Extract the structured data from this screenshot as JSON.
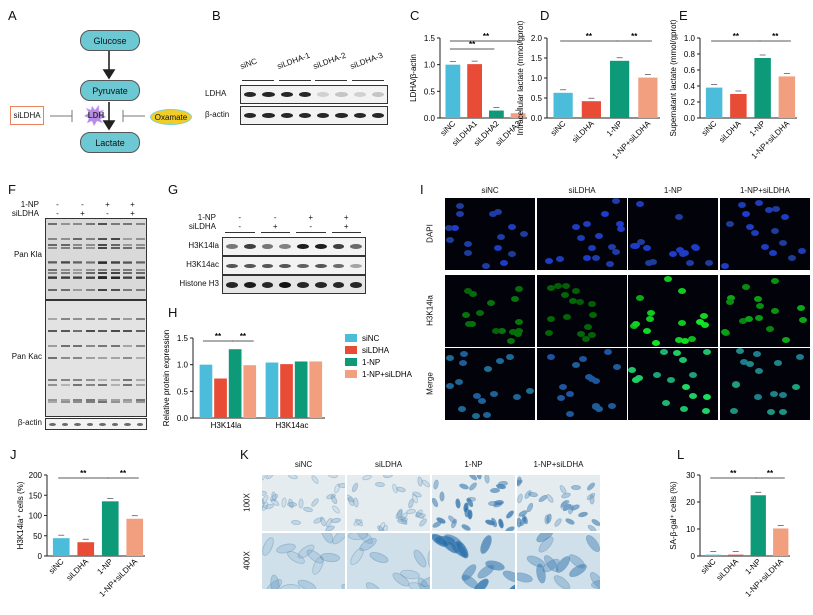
{
  "panel_letters": [
    "A",
    "B",
    "C",
    "D",
    "E",
    "F",
    "G",
    "H",
    "I",
    "J",
    "K",
    "L"
  ],
  "panel_a": {
    "nodes": [
      "Glucose",
      "Pyruvate",
      "Lactate"
    ],
    "inhibitor_left": "siLDHA",
    "enzyme": "LDH",
    "inhibitor_right": "Oxamate"
  },
  "panel_b": {
    "lanes": [
      "siNC",
      "siLDHA-1",
      "siLDHA-2",
      "siLDHA-3"
    ],
    "rows": [
      "LDHA",
      "β-actin"
    ]
  },
  "panel_f": {
    "treatments": [
      {
        "label": "1-NP",
        "values": [
          "-",
          "-",
          "+",
          "+"
        ]
      },
      {
        "label": "siLDHA",
        "values": [
          "-",
          "+",
          "-",
          "+"
        ]
      }
    ],
    "rows": [
      "Pan Kla",
      "Pan Kac",
      "β-actin"
    ]
  },
  "panel_g": {
    "treatments": [
      {
        "label": "1-NP",
        "values": [
          "-",
          "-",
          "+",
          "+"
        ]
      },
      {
        "label": "siLDHA",
        "values": [
          "-",
          "+",
          "-",
          "+"
        ]
      }
    ],
    "rows": [
      "H3K14la",
      "H3K14ac",
      "Histone H3"
    ]
  },
  "panel_i": {
    "columns": [
      "siNC",
      "siLDHA",
      "1-NP",
      "1-NP+siLDHA"
    ],
    "rows": [
      "DAPI",
      "H3K14la",
      "Merge"
    ]
  },
  "panel_k": {
    "columns": [
      "siNC",
      "siLDHA",
      "1-NP",
      "1-NP+siLDHA"
    ],
    "rows": [
      "100X",
      "400X"
    ]
  },
  "colors": {
    "siNC": "#4bbcd9",
    "siLDHA": "#e84b36",
    "1-NP": "#0d9a78",
    "1-NP+siLDHA": "#f29f80"
  },
  "chart_data": [
    {
      "panel": "C",
      "type": "bar",
      "categories": [
        "siNC",
        "siLDHA1",
        "siLDHA2",
        "siLDHA3"
      ],
      "values": [
        1.0,
        1.01,
        0.14,
        0.09
      ],
      "ylabel": "LDHA/β-actin",
      "ylim": [
        0,
        1.5
      ],
      "yticks": [
        "0.0",
        "0.5",
        "1.0",
        "1.5"
      ],
      "significance": [
        {
          "from": 0,
          "to": 2,
          "label": "**"
        },
        {
          "from": 0,
          "to": 3,
          "label": "**"
        }
      ]
    },
    {
      "panel": "D",
      "type": "bar",
      "categories": [
        "siNC",
        "siLDHA",
        "1-NP",
        "1-NP+siLDHA"
      ],
      "values": [
        0.63,
        0.42,
        1.43,
        1.01
      ],
      "ylabel": "Intracellular lactate (mmol/gprot)",
      "ylim": [
        0,
        2.0
      ],
      "yticks": [
        "0.0",
        "0.5",
        "1.0",
        "1.5",
        "2.0"
      ],
      "significance": [
        {
          "from": 0,
          "to": 2,
          "label": "**"
        },
        {
          "from": 2,
          "to": 3,
          "label": "**"
        }
      ]
    },
    {
      "panel": "E",
      "type": "bar",
      "categories": [
        "siNC",
        "siLDHA",
        "1-NP",
        "1-NP+siLDHA"
      ],
      "values": [
        0.38,
        0.3,
        0.75,
        0.52
      ],
      "ylabel": "Supernatant lactate (mmol/gprot)",
      "ylim": [
        0,
        1.0
      ],
      "yticks": [
        "0.0",
        "0.2",
        "0.4",
        "0.6",
        "0.8",
        "1.0"
      ],
      "significance": [
        {
          "from": 0,
          "to": 2,
          "label": "**"
        },
        {
          "from": 2,
          "to": 3,
          "label": "**"
        }
      ]
    },
    {
      "panel": "H",
      "type": "bar",
      "categories": [
        "H3K14la",
        "H3K14ac"
      ],
      "series": [
        {
          "name": "siNC",
          "values": [
            1.0,
            1.04
          ]
        },
        {
          "name": "siLDHA",
          "values": [
            0.74,
            1.01
          ]
        },
        {
          "name": "1-NP",
          "values": [
            1.29,
            1.06
          ]
        },
        {
          "name": "1-NP+siLDHA",
          "values": [
            0.99,
            1.06
          ]
        }
      ],
      "ylabel": "Relative protein expression",
      "ylim": [
        0,
        1.5
      ],
      "yticks": [
        "0.0",
        "0.5",
        "1.0",
        "1.5"
      ],
      "legend": "right",
      "significance": [
        {
          "from": 0,
          "to": 2,
          "label": "**"
        },
        {
          "from": 2,
          "to": 3,
          "label": "**"
        }
      ]
    },
    {
      "panel": "J",
      "type": "bar",
      "categories": [
        "siNC",
        "siLDHA",
        "1-NP",
        "1-NP+siLDHA"
      ],
      "values": [
        44,
        34,
        135,
        92
      ],
      "ylabel": "H3K14la⁺ cells (%)",
      "ylim": [
        0,
        200
      ],
      "yticks": [
        "0",
        "50",
        "100",
        "150",
        "200"
      ],
      "significance": [
        {
          "from": 0,
          "to": 2,
          "label": "**"
        },
        {
          "from": 2,
          "to": 3,
          "label": "**"
        }
      ]
    },
    {
      "panel": "L",
      "type": "bar",
      "categories": [
        "siNC",
        "siLDHA",
        "1-NP",
        "1-NP+siLDHA"
      ],
      "values": [
        0.5,
        0.5,
        22.5,
        10.2
      ],
      "ylabel": "SA-β-gal⁺ cells (%)",
      "ylim": [
        0,
        30
      ],
      "yticks": [
        "0",
        "10",
        "20",
        "30"
      ],
      "significance": [
        {
          "from": 0,
          "to": 2,
          "label": "**"
        },
        {
          "from": 2,
          "to": 3,
          "label": "**"
        }
      ]
    }
  ]
}
